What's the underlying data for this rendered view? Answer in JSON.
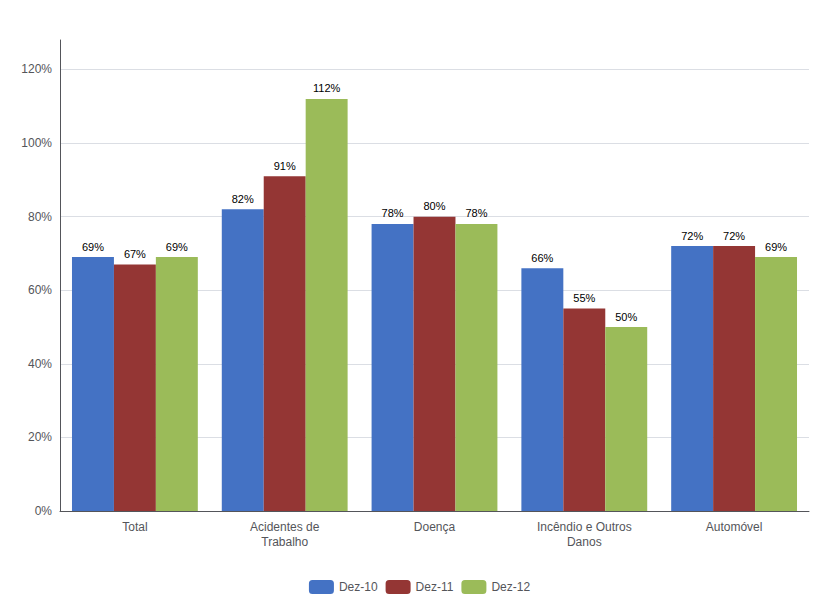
{
  "chart_data": {
    "type": "bar",
    "categories": [
      "Total",
      "Acidentes de\nTrabalho",
      "Doença",
      "Incêndio e Outros\nDanos",
      "Automóvel"
    ],
    "series": [
      {
        "name": "Dez-10",
        "color": "#4472C4",
        "values": [
          0.69,
          0.82,
          0.78,
          0.66,
          0.72
        ],
        "value_labels": [
          "69%",
          "82%",
          "78%",
          "66%",
          "72%"
        ]
      },
      {
        "name": "Dez-11",
        "color": "#943634",
        "values": [
          0.67,
          0.91,
          0.8,
          0.55,
          0.72
        ],
        "value_labels": [
          "67%",
          "91%",
          "80%",
          "55%",
          "72%"
        ]
      },
      {
        "name": "Dez-12",
        "color": "#9BBB59",
        "values": [
          0.69,
          1.12,
          0.78,
          0.5,
          0.69
        ],
        "value_labels": [
          "69%",
          "112%",
          "78%",
          "50%",
          "69%"
        ]
      }
    ],
    "ylim": [
      0,
      1.28
    ],
    "yticks": [
      {
        "value": 0,
        "label": "0%"
      },
      {
        "value": 0.2,
        "label": "20%"
      },
      {
        "value": 0.4,
        "label": "40%"
      },
      {
        "value": 0.6,
        "label": "60%"
      },
      {
        "value": 0.8,
        "label": "80%"
      },
      {
        "value": 1.0,
        "label": "100%"
      },
      {
        "value": 1.2,
        "label": "120%"
      }
    ],
    "grid": true,
    "legend": "bottom",
    "data_labels": true
  }
}
